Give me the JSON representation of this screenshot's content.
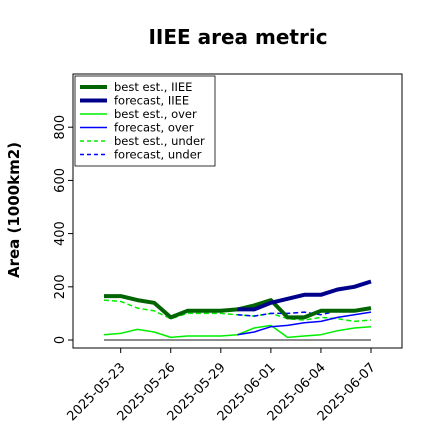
{
  "chart_data": {
    "type": "line",
    "title": "IIEE area metric",
    "xlabel": "",
    "ylabel": "Area (1000km2)",
    "ylim": [
      -30,
      1000
    ],
    "yticks": [
      0,
      200,
      400,
      600,
      800
    ],
    "x": [
      "2025-05-22",
      "2025-05-23",
      "2025-05-24",
      "2025-05-25",
      "2025-05-26",
      "2025-05-27",
      "2025-05-28",
      "2025-05-29",
      "2025-05-30",
      "2025-05-31",
      "2025-06-01",
      "2025-06-02",
      "2025-06-03",
      "2025-06-04",
      "2025-06-05",
      "2025-06-06",
      "2025-06-07"
    ],
    "xticks": [
      "2025-05-23",
      "2025-05-26",
      "2025-05-29",
      "2025-06-01",
      "2025-06-04",
      "2025-06-07"
    ],
    "highlighted_tick": "2025-05-29",
    "highlight_color": "#228B22",
    "grid": false,
    "legend_position": "top-left",
    "series": [
      {
        "name": "best est., IIEE",
        "color": "#006400",
        "width": 4,
        "dash": "none",
        "values": [
          165,
          165,
          150,
          140,
          85,
          110,
          110,
          110,
          115,
          130,
          150,
          85,
          85,
          110,
          110,
          110,
          120
        ]
      },
      {
        "name": "forecast, IIEE",
        "color": "#00008B",
        "width": 4,
        "dash": "none",
        "values": [
          null,
          null,
          null,
          null,
          null,
          null,
          null,
          null,
          115,
          115,
          140,
          155,
          170,
          170,
          190,
          200,
          220
        ]
      },
      {
        "name": "best est., over",
        "color": "#00EE00",
        "width": 1.5,
        "dash": "none",
        "values": [
          20,
          25,
          40,
          30,
          10,
          15,
          15,
          15,
          20,
          45,
          55,
          10,
          15,
          20,
          35,
          45,
          50
        ]
      },
      {
        "name": "forecast, over",
        "color": "#0000FF",
        "width": 1.5,
        "dash": "none",
        "values": [
          null,
          null,
          null,
          null,
          null,
          null,
          null,
          null,
          20,
          30,
          50,
          55,
          65,
          70,
          85,
          95,
          105
        ]
      },
      {
        "name": "best est., under",
        "color": "#00EE00",
        "width": 1.5,
        "dash": "dashed",
        "values": [
          150,
          145,
          120,
          110,
          80,
          100,
          100,
          100,
          95,
          90,
          100,
          80,
          75,
          85,
          80,
          70,
          75
        ]
      },
      {
        "name": "forecast, under",
        "color": "#0000FF",
        "width": 1.5,
        "dash": "dashed",
        "values": [
          null,
          null,
          null,
          null,
          null,
          null,
          null,
          null,
          95,
          90,
          100,
          100,
          105,
          95,
          110,
          110,
          115
        ]
      },
      {
        "name": "",
        "color": "#666666",
        "width": 1.5,
        "dash": "none",
        "values": [
          0,
          0,
          0,
          0,
          0,
          0,
          0,
          0,
          0,
          0,
          0,
          0,
          0,
          0,
          0,
          0,
          0
        ]
      }
    ]
  }
}
